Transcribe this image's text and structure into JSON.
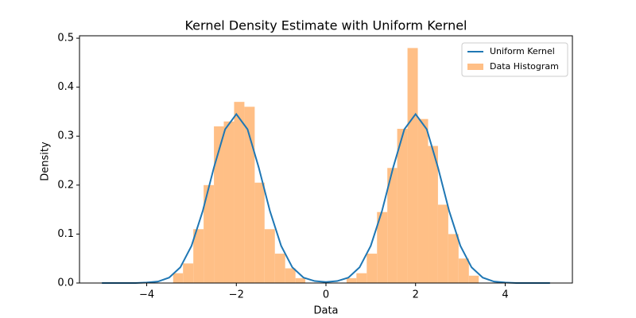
{
  "chart_data": {
    "type": "histogram",
    "title": "Kernel Density Estimate with Uniform Kernel",
    "xlabel": "Data",
    "ylabel": "Density",
    "xlim": [
      -5.5,
      5.5
    ],
    "ylim": [
      0,
      0.505
    ],
    "xticks": [
      {
        "value": -4,
        "label": "−4"
      },
      {
        "value": -2,
        "label": "−2"
      },
      0,
      2,
      4
    ],
    "yticks": [
      {
        "value": 0,
        "label": "0.0"
      },
      0.1,
      0.2,
      0.3,
      0.4,
      0.5
    ],
    "legend": "upper right",
    "series": [
      {
        "name": "Uniform Kernel",
        "type": "line",
        "color": "#1f77b4",
        "x": [
          -5,
          -4.75,
          -4.5,
          -4.25,
          -4,
          -3.75,
          -3.5,
          -3.25,
          -3,
          -2.75,
          -2.5,
          -2.25,
          -2,
          -1.75,
          -1.5,
          -1.25,
          -1,
          -0.75,
          -0.5,
          -0.25,
          0,
          0.25,
          0.5,
          0.75,
          1,
          1.25,
          1.5,
          1.75,
          2,
          2.25,
          2.5,
          2.75,
          3,
          3.25,
          3.5,
          3.75,
          4,
          4.25,
          4.5,
          4.75,
          5
        ],
        "values": [
          0,
          0,
          0,
          0,
          0.001,
          0.003,
          0.011,
          0.032,
          0.076,
          0.147,
          0.236,
          0.314,
          0.345,
          0.314,
          0.236,
          0.147,
          0.076,
          0.032,
          0.011,
          0.004,
          0.002,
          0.004,
          0.011,
          0.032,
          0.076,
          0.147,
          0.236,
          0.314,
          0.345,
          0.314,
          0.236,
          0.147,
          0.076,
          0.032,
          0.011,
          0.003,
          0.001,
          0,
          0,
          0,
          0
        ]
      },
      {
        "name": "Data Histogram",
        "type": "histogram",
        "color": "#ffbf86",
        "bins": [
          -3.41,
          -3.19,
          -2.96,
          -2.73,
          -2.5,
          -2.28,
          -2.05,
          -1.82,
          -1.59,
          -1.37,
          -1.14,
          -0.91,
          -0.68,
          -0.46,
          -0.23,
          0,
          0.23,
          0.46,
          0.68,
          0.91,
          1.14,
          1.37,
          1.59,
          1.82,
          2.05,
          2.28,
          2.5,
          2.73,
          2.96,
          3.19,
          3.41
        ],
        "values": [
          0.02,
          0.04,
          0.11,
          0.2,
          0.32,
          0.33,
          0.37,
          0.36,
          0.205,
          0.11,
          0.06,
          0.03,
          0.01,
          0,
          0,
          0,
          0,
          0.01,
          0.02,
          0.06,
          0.145,
          0.235,
          0.315,
          0.48,
          0.335,
          0.28,
          0.16,
          0.1,
          0.05,
          0.015
        ]
      }
    ]
  }
}
